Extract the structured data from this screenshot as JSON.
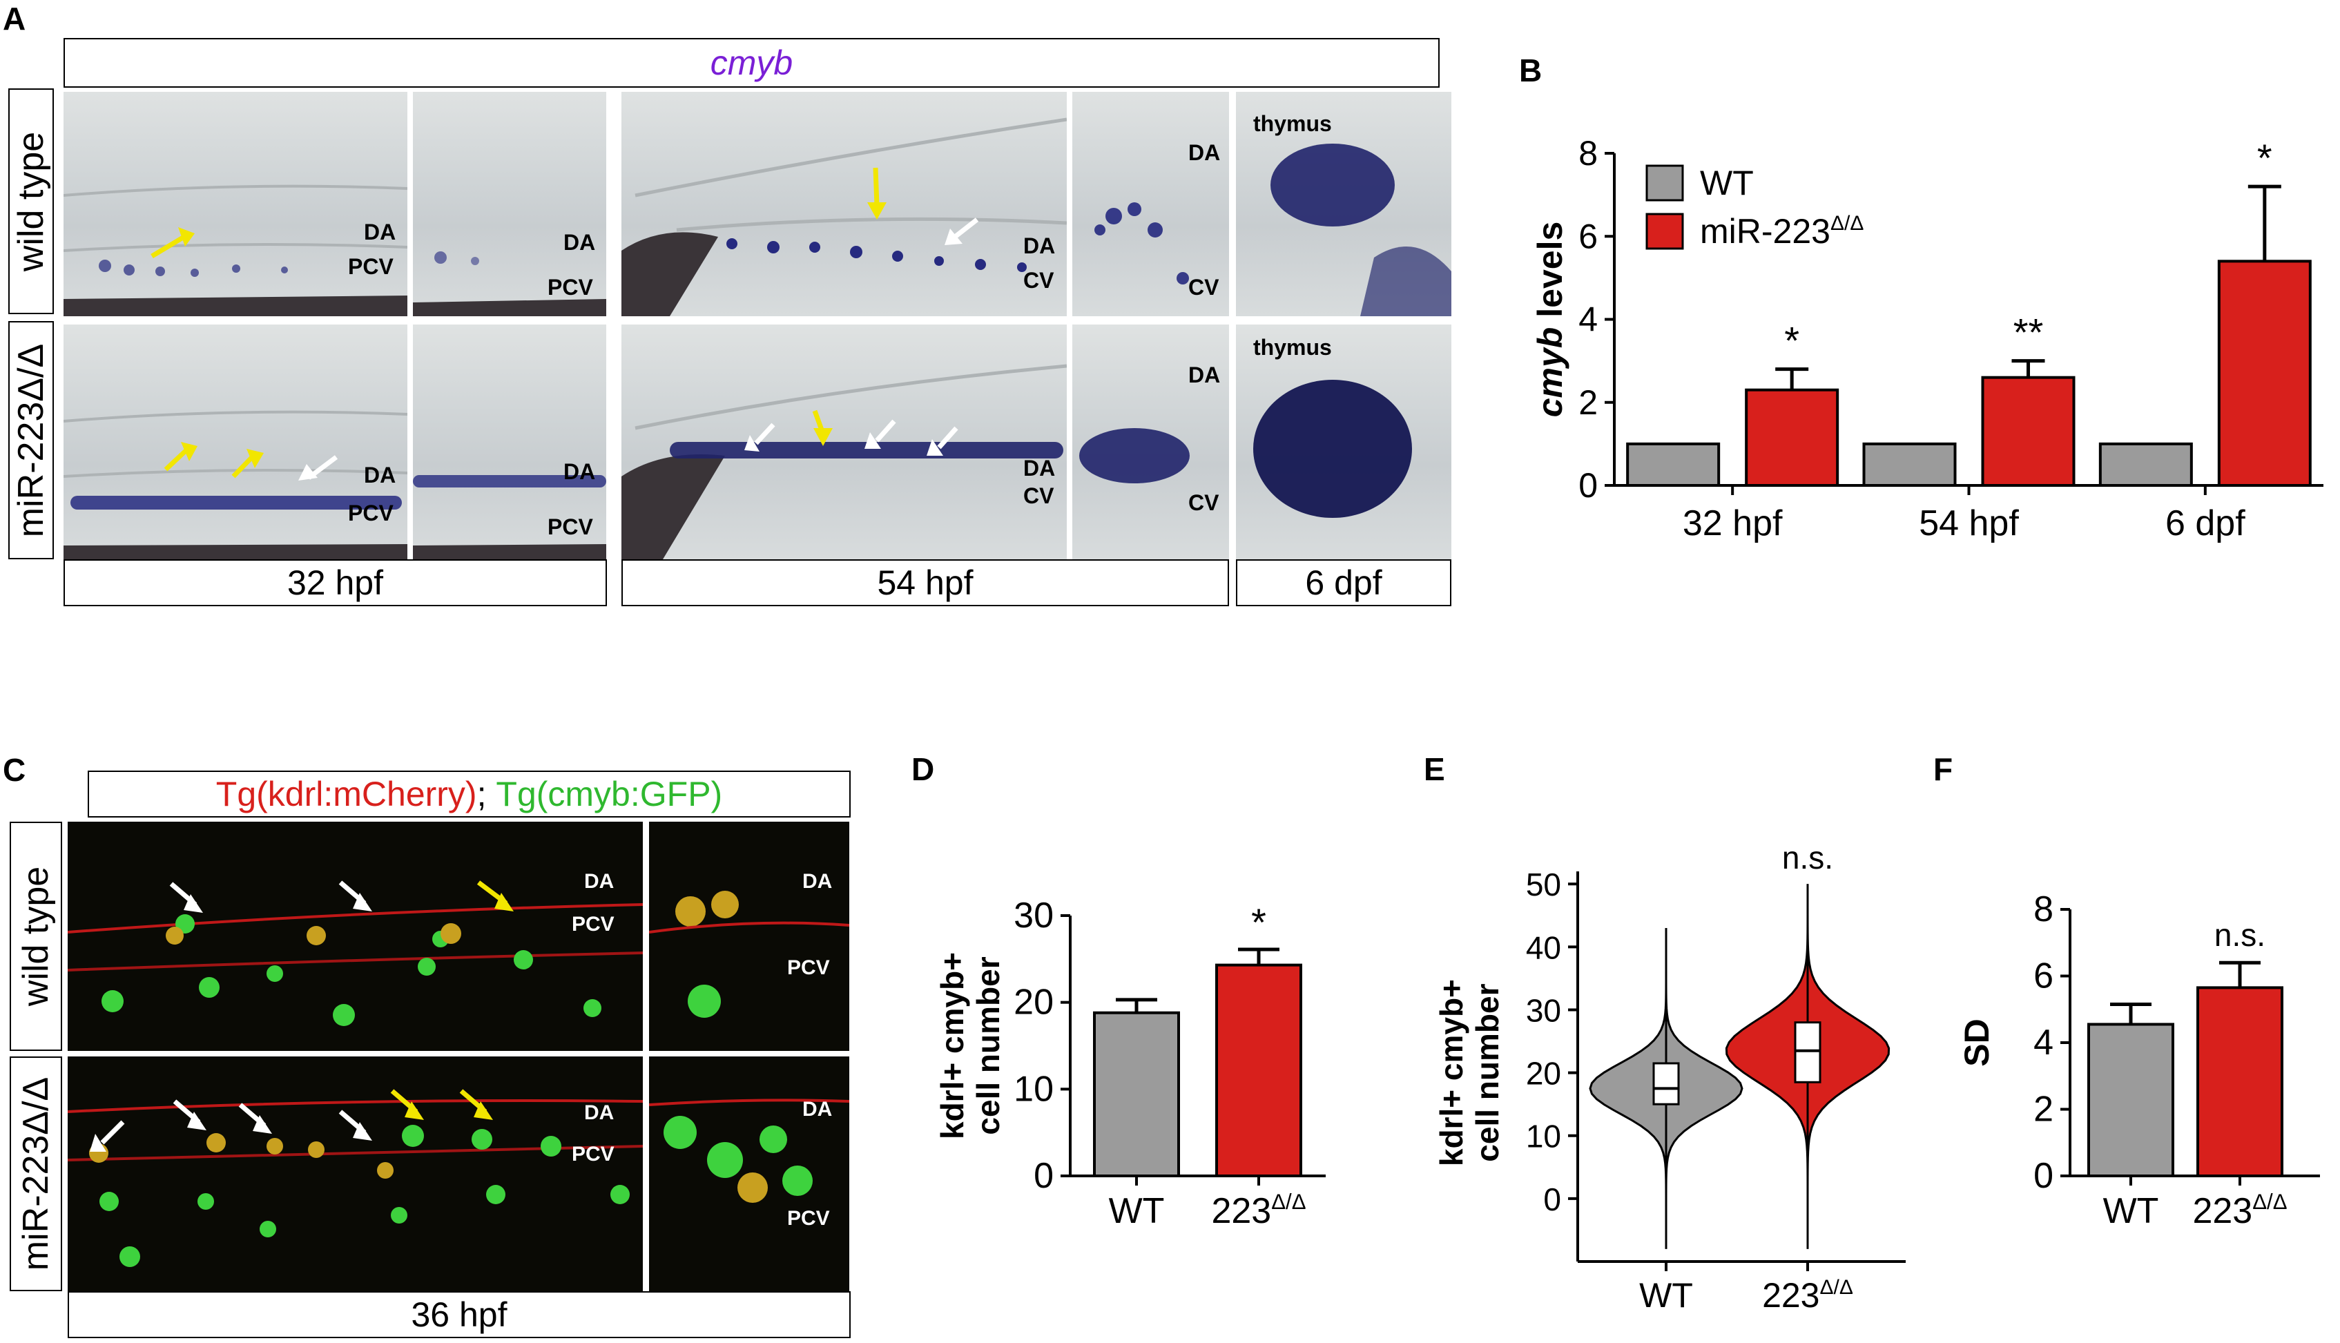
{
  "panelA": {
    "letter": "A",
    "gene": "cmyb",
    "rows": [
      "wild type",
      "miR-223Δ/Δ"
    ],
    "stages": [
      "32 hpf",
      "54 hpf",
      "6 dpf"
    ],
    "tissue_labels": {
      "da": "DA",
      "pcv": "PCV",
      "cv": "CV",
      "thymus": "thymus"
    }
  },
  "panelC": {
    "letter": "C",
    "title_red": "Tg(kdrl:mCherry)",
    "title_sep": ";",
    "title_green": "Tg(cmyb:GFP)",
    "rows": [
      "wild type",
      "miR-223Δ/Δ"
    ],
    "stage": "36 hpf",
    "tissue_labels": {
      "da": "DA",
      "pcv": "PCV"
    }
  },
  "colors": {
    "wt": "#9b9b9b",
    "mut": "#d8201c",
    "yellow_arrow": "#f2e600",
    "white_arrow": "#ffffff",
    "cmyb_title": "#7a1fd6"
  },
  "chart_data": [
    {
      "panel": "B",
      "type": "bar",
      "ylabel": "cmyb levels",
      "ylim": [
        0,
        8
      ],
      "yticks": [
        0,
        2,
        4,
        6,
        8
      ],
      "categories": [
        "32 hpf",
        "54 hpf",
        "6 dpf"
      ],
      "series": [
        {
          "name": "WT",
          "values": [
            1,
            1,
            1
          ],
          "errors": [
            0,
            0,
            0
          ]
        },
        {
          "name": "miR-223Δ/Δ",
          "values": [
            2.3,
            2.6,
            5.4
          ],
          "errors": [
            0.5,
            0.4,
            1.8
          ]
        }
      ],
      "significance": [
        "*",
        "**",
        "*"
      ],
      "legend": "top-left"
    },
    {
      "panel": "D",
      "type": "bar",
      "ylabel_lines": [
        "kdrl+ cmyb+",
        "cell number"
      ],
      "ylim": [
        0,
        30
      ],
      "yticks": [
        0,
        10,
        20,
        30
      ],
      "categories": [
        "WT",
        "223Δ/Δ"
      ],
      "values": [
        18.8,
        24.3
      ],
      "errors": [
        1.5,
        1.8
      ],
      "significance": [
        "",
        "*"
      ]
    },
    {
      "panel": "E",
      "type": "violin",
      "ylabel_lines": [
        "kdrl+ cmyb+",
        "cell number"
      ],
      "ylim": [
        -10,
        52
      ],
      "yticks": [
        0,
        10,
        20,
        30,
        40,
        50
      ],
      "categories": [
        "WT",
        "223Δ/Δ"
      ],
      "groups": [
        {
          "min": -8,
          "q1": 15,
          "median": 17.5,
          "q3": 21.5,
          "max": 43
        },
        {
          "min": -8,
          "q1": 18.5,
          "median": 23.5,
          "q3": 28,
          "max": 50
        }
      ],
      "significance": [
        "",
        "n.s."
      ]
    },
    {
      "panel": "F",
      "type": "bar",
      "ylabel": "SD",
      "ylim": [
        0,
        8
      ],
      "yticks": [
        0,
        2,
        4,
        6,
        8
      ],
      "categories": [
        "WT",
        "223Δ/Δ"
      ],
      "values": [
        4.55,
        5.65
      ],
      "errors": [
        0.6,
        0.75
      ],
      "significance": [
        "",
        "n.s."
      ]
    }
  ]
}
